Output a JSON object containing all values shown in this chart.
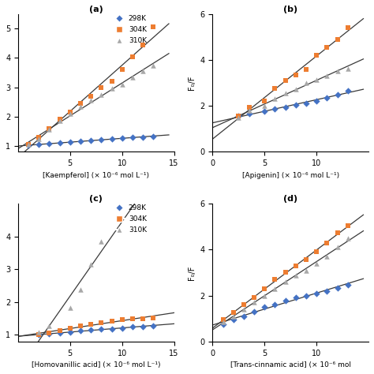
{
  "colors": {
    "298K": "#4472C4",
    "304K": "#ED7D31",
    "310K": "#A8A8A8"
  },
  "line_color": "#3A3A3A",
  "panel_a": {
    "title": "(a)",
    "xlabel": "[Kaempferol] (× 10⁻⁶ mol L⁻¹)",
    "show_ylabel": false,
    "xlim": [
      0,
      15
    ],
    "xticks": [
      5,
      10,
      15
    ],
    "ylim": [
      0.8,
      5.5
    ],
    "yticks": [
      1,
      2,
      3,
      4,
      5
    ],
    "x298": [
      1,
      2,
      3,
      4,
      5,
      6,
      7,
      8,
      9,
      10,
      11,
      12,
      13
    ],
    "y298": [
      1.02,
      1.04,
      1.07,
      1.1,
      1.13,
      1.16,
      1.19,
      1.21,
      1.24,
      1.26,
      1.28,
      1.3,
      1.33
    ],
    "x304": [
      1,
      2,
      3,
      4,
      5,
      6,
      7,
      8,
      9,
      10,
      11,
      12,
      13
    ],
    "y304": [
      1.05,
      1.3,
      1.6,
      1.9,
      2.15,
      2.45,
      2.7,
      3.0,
      3.2,
      3.6,
      4.05,
      4.45,
      5.05
    ],
    "x310": [
      1,
      2,
      3,
      4,
      5,
      6,
      7,
      8,
      9,
      10,
      11,
      12,
      13
    ],
    "y310": [
      1.05,
      1.25,
      1.55,
      1.85,
      2.1,
      2.35,
      2.55,
      2.75,
      2.95,
      3.1,
      3.35,
      3.55,
      3.75
    ]
  },
  "panel_b": {
    "title": "(b)",
    "xlabel": "[Apigenin] (× 10⁻⁶ mol L⁻¹)",
    "ylabel": "F₀/F",
    "xlim": [
      0,
      15
    ],
    "xticks": [
      0,
      5,
      10
    ],
    "ylim": [
      0,
      6
    ],
    "yticks": [
      0,
      2,
      4,
      6
    ],
    "x298": [
      2.5,
      3.5,
      5,
      6,
      7,
      8,
      9,
      10,
      11,
      12,
      13
    ],
    "y298": [
      1.55,
      1.65,
      1.75,
      1.85,
      1.95,
      2.05,
      2.12,
      2.2,
      2.35,
      2.5,
      2.65
    ],
    "x304": [
      2.5,
      3.5,
      5,
      6,
      7,
      8,
      9,
      10,
      11,
      12,
      13
    ],
    "y304": [
      1.55,
      1.95,
      2.2,
      2.75,
      3.1,
      3.35,
      3.6,
      4.2,
      4.55,
      4.9,
      5.4
    ],
    "x310": [
      2.5,
      3.5,
      5,
      6,
      7,
      8,
      9,
      10,
      11,
      12,
      13
    ],
    "y310": [
      1.5,
      1.8,
      2.0,
      2.3,
      2.55,
      2.72,
      3.0,
      3.15,
      3.32,
      3.52,
      3.62
    ],
    "fit298_x0": 0.0,
    "fit298_y0": 0.75,
    "fit304_x0": 0.0,
    "fit304_y0": 0.45,
    "fit310_x0": 0.0,
    "fit310_y0": 0.65
  },
  "panel_c": {
    "title": "(c)",
    "xlabel": "[Homovanillic acid] (× 10⁻⁶ mol L⁻¹)",
    "show_ylabel": false,
    "xlim": [
      0,
      15
    ],
    "xticks": [
      5,
      10,
      15
    ],
    "ylim": [
      0.8,
      5.0
    ],
    "yticks": [
      1,
      2,
      3,
      4
    ],
    "x298": [
      2,
      3,
      4,
      5,
      6,
      7,
      8,
      9,
      10,
      11,
      12,
      13
    ],
    "y298": [
      1.0,
      1.03,
      1.06,
      1.09,
      1.12,
      1.15,
      1.17,
      1.19,
      1.21,
      1.24,
      1.26,
      1.28
    ],
    "x304": [
      2,
      3,
      4,
      5,
      6,
      7,
      8,
      9,
      10,
      11,
      12,
      13
    ],
    "y304": [
      1.02,
      1.07,
      1.13,
      1.2,
      1.27,
      1.32,
      1.37,
      1.42,
      1.47,
      1.49,
      1.5,
      1.52
    ],
    "x310": [
      2,
      3,
      5,
      6,
      7,
      8
    ],
    "y310": [
      1.08,
      1.28,
      1.82,
      2.38,
      3.15,
      3.85
    ]
  },
  "panel_d": {
    "title": "(d)",
    "xlabel": "[Trans-cinnamic acid] (× 10⁻⁶ mol",
    "ylabel": "F₀/F",
    "xlim": [
      0,
      15
    ],
    "xticks": [
      0,
      5,
      10
    ],
    "ylim": [
      0,
      6
    ],
    "yticks": [
      0,
      2,
      4,
      6
    ],
    "x298": [
      1,
      2,
      3,
      4,
      5,
      6,
      7,
      8,
      9,
      10,
      11,
      12,
      13
    ],
    "y298": [
      0.75,
      0.95,
      1.1,
      1.3,
      1.5,
      1.6,
      1.78,
      1.9,
      2.0,
      2.1,
      2.2,
      2.32,
      2.48
    ],
    "x304": [
      1,
      2,
      3,
      4,
      5,
      6,
      7,
      8,
      9,
      10,
      11,
      12,
      13
    ],
    "y304": [
      0.95,
      1.25,
      1.6,
      1.9,
      2.3,
      2.7,
      3.0,
      3.3,
      3.58,
      3.9,
      4.3,
      4.72,
      5.05
    ],
    "x310": [
      1,
      2,
      3,
      4,
      5,
      6,
      7,
      8,
      9,
      10,
      11,
      12,
      13
    ],
    "y310": [
      0.85,
      1.1,
      1.4,
      1.7,
      2.0,
      2.3,
      2.6,
      2.88,
      3.1,
      3.4,
      3.72,
      4.1,
      4.5
    ],
    "fit298_x0": 0.0,
    "fit298_y0": 0.55,
    "fit304_x0": 0.0,
    "fit304_y0": 0.6,
    "fit310_x0": 0.0,
    "fit310_y0": 0.45
  }
}
